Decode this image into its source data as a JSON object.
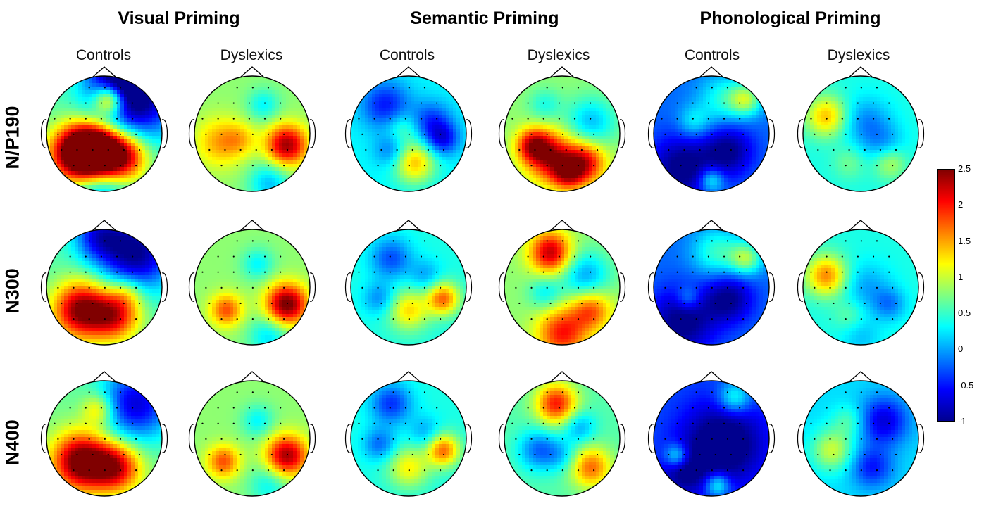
{
  "conditions": [
    {
      "id": "visual",
      "title": "Visual Priming"
    },
    {
      "id": "semantic",
      "title": "Semantic Priming"
    },
    {
      "id": "phonological",
      "title": "Phonological Priming"
    }
  ],
  "groups": [
    "Controls",
    "Dyslexics",
    "Controls",
    "Dyslexics",
    "Controls",
    "Dyslexics"
  ],
  "rows": [
    "N/P190",
    "N300",
    "N400"
  ],
  "colorbar": {
    "ticks": [
      "2.5",
      "2",
      "1.5",
      "1",
      "0.5",
      "0",
      "-0.5",
      "-1"
    ],
    "min": -1,
    "max": 2.5,
    "colormap": [
      "#00008f",
      "#0000ff",
      "#0080ff",
      "#00ffff",
      "#80ff80",
      "#ffff00",
      "#ff8000",
      "#ff0000",
      "#800000"
    ]
  },
  "maps": [
    [
      {
        "base": 0.6,
        "blobs": [
          [
            -0.45,
            0.35,
            0.35,
            2.3
          ],
          [
            -0.15,
            0.3,
            0.3,
            2.0
          ],
          [
            0.3,
            0.4,
            0.3,
            1.8
          ],
          [
            0.1,
            -0.6,
            0.2,
            1.9
          ],
          [
            0.55,
            -0.6,
            0.5,
            -1.6
          ],
          [
            0.2,
            -0.95,
            0.35,
            -1.2
          ],
          [
            -0.1,
            0.95,
            0.35,
            -0.8
          ]
        ]
      },
      {
        "base": 0.8,
        "blobs": [
          [
            0.6,
            0.2,
            0.25,
            1.6
          ],
          [
            -0.55,
            0.15,
            0.3,
            0.7
          ],
          [
            0.2,
            -0.5,
            0.2,
            -0.5
          ],
          [
            0.3,
            0.85,
            0.25,
            -0.7
          ],
          [
            -0.2,
            0.1,
            0.2,
            0.4
          ]
        ]
      },
      {
        "base": 0.3,
        "blobs": [
          [
            -0.4,
            -0.5,
            0.3,
            -0.8
          ],
          [
            0.4,
            -0.2,
            0.25,
            -0.7
          ],
          [
            0.1,
            0.5,
            0.25,
            1.1
          ],
          [
            -0.3,
            0.3,
            0.2,
            -0.5
          ],
          [
            0.6,
            0.1,
            0.2,
            -0.8
          ],
          [
            -0.1,
            -0.1,
            0.2,
            0.4
          ]
        ]
      },
      {
        "base": 0.8,
        "blobs": [
          [
            -0.2,
            0.4,
            0.3,
            1.4
          ],
          [
            0.4,
            0.5,
            0.25,
            1.3
          ],
          [
            -0.5,
            0.2,
            0.2,
            1.2
          ],
          [
            0.5,
            -0.2,
            0.3,
            -0.7
          ],
          [
            -0.3,
            -0.5,
            0.2,
            -0.4
          ],
          [
            0.1,
            0.7,
            0.2,
            1.0
          ]
        ]
      },
      {
        "base": -0.2,
        "blobs": [
          [
            -0.5,
            0.6,
            0.4,
            -0.9
          ],
          [
            0.3,
            0.3,
            0.3,
            -0.8
          ],
          [
            0.2,
            -0.6,
            0.3,
            0.6
          ],
          [
            0.6,
            -0.6,
            0.2,
            1.0
          ],
          [
            0.0,
            0.8,
            0.15,
            0.8
          ],
          [
            -0.3,
            -0.2,
            0.2,
            0.5
          ]
        ]
      },
      {
        "base": 0.4,
        "blobs": [
          [
            -0.6,
            -0.3,
            0.25,
            1.0
          ],
          [
            0.1,
            -0.2,
            0.3,
            -0.5
          ],
          [
            0.4,
            0.2,
            0.25,
            -0.4
          ],
          [
            -0.2,
            0.5,
            0.2,
            0.3
          ],
          [
            0.5,
            0.5,
            0.2,
            0.6
          ]
        ]
      }
    ],
    [
      {
        "base": 0.6,
        "blobs": [
          [
            -0.4,
            0.4,
            0.35,
            1.9
          ],
          [
            0.2,
            0.5,
            0.3,
            1.4
          ],
          [
            0.55,
            -0.6,
            0.45,
            -1.6
          ],
          [
            -0.1,
            -0.9,
            0.3,
            -1.0
          ],
          [
            0.4,
            0.1,
            0.2,
            0.5
          ]
        ]
      },
      {
        "base": 0.8,
        "blobs": [
          [
            0.6,
            0.3,
            0.25,
            1.8
          ],
          [
            -0.45,
            0.4,
            0.2,
            1.0
          ],
          [
            0.1,
            -0.4,
            0.2,
            -0.5
          ],
          [
            0.3,
            0.85,
            0.25,
            -0.6
          ]
        ]
      },
      {
        "base": 0.4,
        "blobs": [
          [
            -0.3,
            -0.5,
            0.25,
            -0.7
          ],
          [
            0.6,
            0.2,
            0.2,
            1.3
          ],
          [
            0.0,
            0.4,
            0.25,
            0.9
          ],
          [
            -0.5,
            0.2,
            0.2,
            -0.5
          ],
          [
            0.3,
            -0.2,
            0.2,
            -0.4
          ]
        ]
      },
      {
        "base": 0.8,
        "blobs": [
          [
            -0.2,
            -0.6,
            0.25,
            1.5
          ],
          [
            0.0,
            0.8,
            0.3,
            1.2
          ],
          [
            0.5,
            0.4,
            0.25,
            1.0
          ],
          [
            0.4,
            -0.2,
            0.3,
            -0.8
          ],
          [
            -0.3,
            0.1,
            0.2,
            -0.5
          ]
        ]
      },
      {
        "base": -0.2,
        "blobs": [
          [
            -0.5,
            0.6,
            0.4,
            -0.9
          ],
          [
            0.3,
            0.2,
            0.3,
            -0.8
          ],
          [
            0.1,
            -0.6,
            0.3,
            0.7
          ],
          [
            0.6,
            -0.5,
            0.2,
            1.0
          ],
          [
            -0.4,
            0.2,
            0.15,
            0.5
          ]
        ]
      },
      {
        "base": 0.4,
        "blobs": [
          [
            -0.6,
            -0.2,
            0.25,
            1.2
          ],
          [
            0.1,
            0.0,
            0.3,
            -0.4
          ],
          [
            0.5,
            0.3,
            0.2,
            -0.5
          ],
          [
            -0.2,
            0.5,
            0.2,
            0.3
          ],
          [
            0.0,
            0.85,
            0.25,
            -0.3
          ]
        ]
      }
    ],
    [
      {
        "base": 0.7,
        "blobs": [
          [
            -0.4,
            0.4,
            0.35,
            2.0
          ],
          [
            0.2,
            0.5,
            0.3,
            1.5
          ],
          [
            0.55,
            -0.6,
            0.45,
            -1.4
          ],
          [
            -0.1,
            -0.5,
            0.2,
            0.8
          ]
        ]
      },
      {
        "base": 0.8,
        "blobs": [
          [
            0.6,
            0.3,
            0.25,
            1.6
          ],
          [
            -0.5,
            0.4,
            0.2,
            1.0
          ],
          [
            0.1,
            -0.3,
            0.2,
            -0.5
          ],
          [
            0.3,
            0.8,
            0.25,
            -0.5
          ]
        ]
      },
      {
        "base": 0.4,
        "blobs": [
          [
            -0.3,
            -0.6,
            0.25,
            -0.8
          ],
          [
            0.6,
            0.2,
            0.2,
            1.3
          ],
          [
            0.0,
            0.5,
            0.25,
            0.8
          ],
          [
            -0.5,
            0.1,
            0.2,
            -0.6
          ],
          [
            0.3,
            -0.1,
            0.2,
            -0.4
          ]
        ]
      },
      {
        "base": 0.6,
        "blobs": [
          [
            -0.1,
            -0.6,
            0.25,
            1.4
          ],
          [
            0.5,
            0.5,
            0.25,
            1.1
          ],
          [
            -0.4,
            0.2,
            0.25,
            -0.8
          ],
          [
            0.3,
            -0.2,
            0.2,
            -0.6
          ],
          [
            0.0,
            0.3,
            0.2,
            -0.4
          ]
        ]
      },
      {
        "base": -0.3,
        "blobs": [
          [
            0.2,
            0.1,
            0.5,
            -1.0
          ],
          [
            -0.5,
            0.6,
            0.3,
            -0.6
          ],
          [
            -0.6,
            0.3,
            0.15,
            0.9
          ],
          [
            0.4,
            -0.7,
            0.2,
            0.8
          ],
          [
            0.1,
            0.8,
            0.15,
            0.9
          ]
        ]
      },
      {
        "base": 0.2,
        "blobs": [
          [
            0.4,
            -0.3,
            0.3,
            -0.9
          ],
          [
            -0.5,
            0.2,
            0.25,
            0.8
          ],
          [
            0.2,
            0.5,
            0.25,
            -0.7
          ],
          [
            -0.2,
            -0.3,
            0.2,
            0.4
          ]
        ]
      }
    ]
  ]
}
